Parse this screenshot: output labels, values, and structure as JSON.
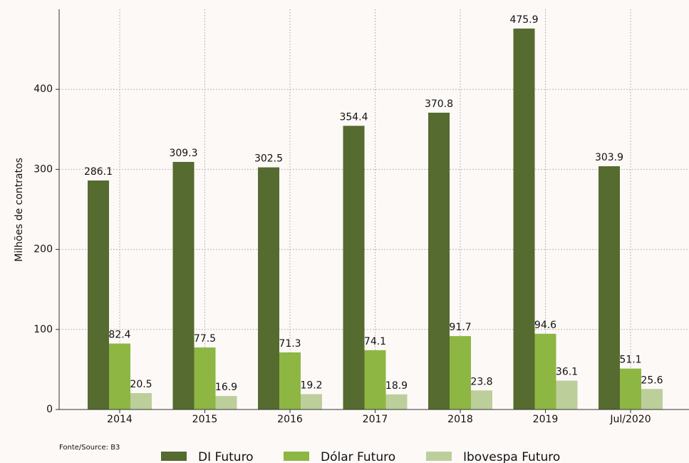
{
  "chart_data": {
    "type": "bar",
    "y_label": "Milhões de contratos",
    "source": "Fonte/Source: B3",
    "categories": [
      "2014",
      "2015",
      "2016",
      "2017",
      "2018",
      "2019",
      "Jul/2020"
    ],
    "series": [
      {
        "name": "DI Futuro",
        "color": "#556b2f",
        "values": [
          286.1,
          309.3,
          302.5,
          354.4,
          370.8,
          475.9,
          303.9
        ]
      },
      {
        "name": "Dólar Futuro",
        "color": "#8db643",
        "values": [
          82.4,
          77.5,
          71.3,
          74.1,
          91.7,
          94.6,
          51.1
        ]
      },
      {
        "name": "Ibovespa Futuro",
        "color": "#bccf9b",
        "values": [
          20.5,
          16.9,
          19.2,
          18.9,
          23.8,
          36.1,
          25.6
        ]
      }
    ],
    "ylim": [
      0,
      500
    ],
    "yticks": [
      0,
      100,
      200,
      300,
      400
    ],
    "grid": true,
    "legend": "bottom"
  }
}
